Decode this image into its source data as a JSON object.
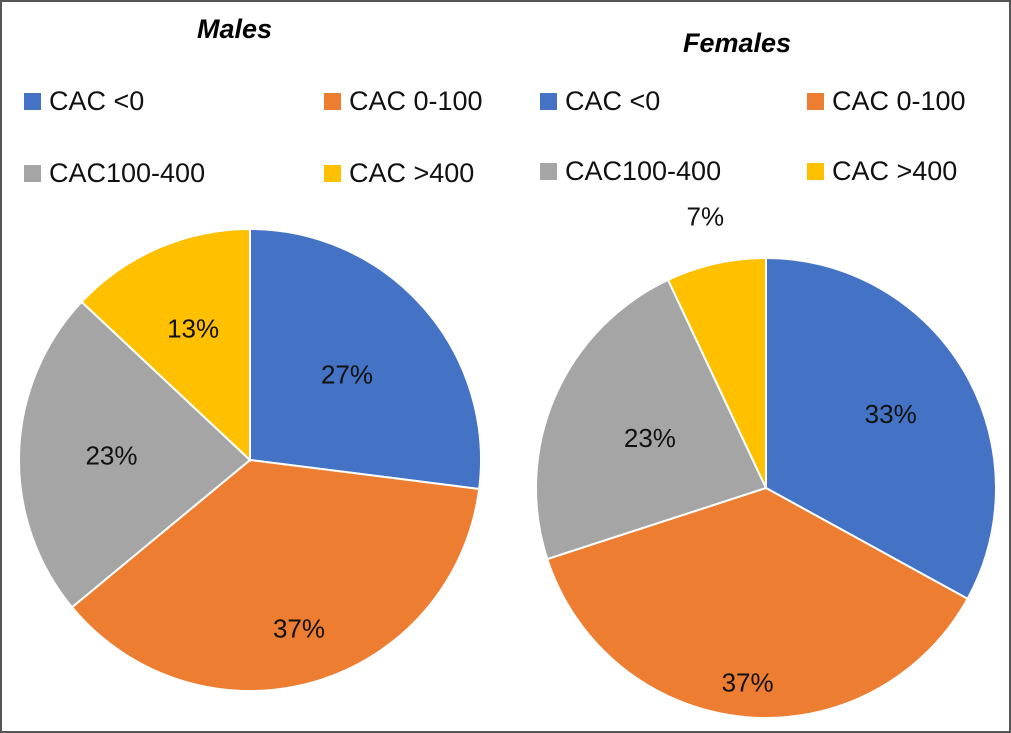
{
  "colors": {
    "cac_lt0": "#4472c4",
    "cac_0_100": "#ed7d31",
    "cac_100_400": "#a5a5a5",
    "cac_gt400": "#ffc000"
  },
  "chart_data": [
    {
      "type": "pie",
      "title": "Males",
      "labels": [
        "CAC <0",
        "CAC 0-100",
        "CAC100-400",
        "CAC >400"
      ],
      "values": [
        27,
        37,
        23,
        13
      ],
      "value_labels": [
        "27%",
        "37%",
        "23%",
        "13%"
      ],
      "colors": [
        "#4472c4",
        "#ed7d31",
        "#a5a5a5",
        "#ffc000"
      ],
      "start_angle_deg": 0,
      "direction": "clockwise",
      "legend_position": "top"
    },
    {
      "type": "pie",
      "title": "Females",
      "labels": [
        "CAC <0",
        "CAC 0-100",
        "CAC100-400",
        "CAC >400"
      ],
      "values": [
        33,
        37,
        23,
        7
      ],
      "value_labels": [
        "33%",
        "37%",
        "23%",
        "7%"
      ],
      "colors": [
        "#4472c4",
        "#ed7d31",
        "#a5a5a5",
        "#ffc000"
      ],
      "start_angle_deg": 0,
      "direction": "clockwise",
      "legend_position": "top"
    }
  ]
}
